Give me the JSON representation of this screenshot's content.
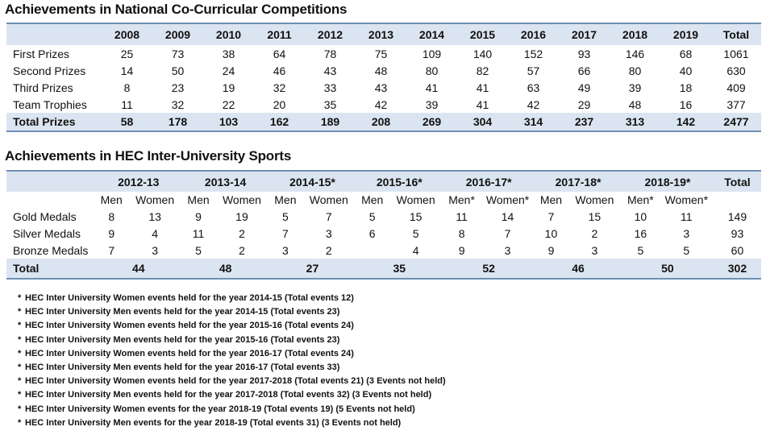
{
  "table1": {
    "title": "Achievements in National Co-Curricular Competitions",
    "columns": [
      "2008",
      "2009",
      "2010",
      "2011",
      "2012",
      "2013",
      "2014",
      "2015",
      "2016",
      "2017",
      "2018",
      "2019",
      "Total"
    ],
    "rows": [
      {
        "label": "First Prizes",
        "values": [
          "25",
          "73",
          "38",
          "64",
          "78",
          "75",
          "109",
          "140",
          "152",
          "93",
          "146",
          "68",
          "1061"
        ]
      },
      {
        "label": "Second Prizes",
        "values": [
          "14",
          "50",
          "24",
          "46",
          "43",
          "48",
          "80",
          "82",
          "57",
          "66",
          "80",
          "40",
          "630"
        ]
      },
      {
        "label": "Third Prizes",
        "values": [
          "8",
          "23",
          "19",
          "32",
          "33",
          "43",
          "41",
          "41",
          "63",
          "49",
          "39",
          "18",
          "409"
        ]
      },
      {
        "label": "Team Trophies",
        "values": [
          "11",
          "32",
          "22",
          "20",
          "35",
          "42",
          "39",
          "41",
          "42",
          "29",
          "48",
          "16",
          "377"
        ]
      }
    ],
    "total": {
      "label": "Total Prizes",
      "values": [
        "58",
        "178",
        "103",
        "162",
        "189",
        "208",
        "269",
        "304",
        "314",
        "237",
        "313",
        "142",
        "2477"
      ]
    }
  },
  "table2": {
    "title": "Achievements in HEC Inter-University Sports",
    "years": [
      "2012-13",
      "2013-14",
      "2014-15*",
      "2015-16*",
      "2016-17*",
      "2017-18*",
      "2018-19*"
    ],
    "total_header": "Total",
    "subheaders": [
      "Men",
      "Women",
      "Men",
      "Women",
      "Men",
      "Women",
      "Men",
      "Women",
      "Men*",
      "Women*",
      "Men",
      "Women",
      "Men*",
      "Women*"
    ],
    "rows": [
      {
        "label": "Gold Medals",
        "values": [
          "8",
          "13",
          "9",
          "19",
          "5",
          "7",
          "5",
          "15",
          "11",
          "14",
          "7",
          "15",
          "10",
          "11"
        ],
        "total": "149"
      },
      {
        "label": "Silver Medals",
        "values": [
          "9",
          "4",
          "11",
          "2",
          "7",
          "3",
          "6",
          "5",
          "8",
          "7",
          "10",
          "2",
          "16",
          "3"
        ],
        "total": "93"
      },
      {
        "label": "Bronze Medals",
        "values": [
          "7",
          "3",
          "5",
          "2",
          "3",
          "2",
          "",
          "4",
          "9",
          "3",
          "9",
          "3",
          "5",
          "5"
        ],
        "total": "60"
      }
    ],
    "total": {
      "label": "Total",
      "values": [
        "44",
        "48",
        "27",
        "35",
        "52",
        "46",
        "50"
      ],
      "total": "302"
    }
  },
  "notes": [
    "HEC Inter University Women events held for the year 2014-15 (Total events 12)",
    "HEC Inter University Men events held for the year 2014-15 (Total events 23)",
    "HEC Inter University Women events held for the year 2015-16 (Total events 24)",
    "HEC Inter University Men events held for the year 2015-16 (Total events 23)",
    "HEC Inter University Women events held for the year 2016-17 (Total events 24)",
    "HEC Inter University Men events held for the year 2016-17 (Total events 33)",
    "HEC Inter University Women events held for the year 2017-2018 (Total events 21) (3 Events not held)",
    "HEC Inter University Men events held for the year 2017-2018 (Total events 32) (3 Events not held)",
    "HEC Inter University Women events for the year 2018-19 (Total events 19) (5 Events not held)",
    "HEC Inter University Men events for the year 2018-19 (Total events 31) (3 Events not held)"
  ],
  "note_marker": "*"
}
